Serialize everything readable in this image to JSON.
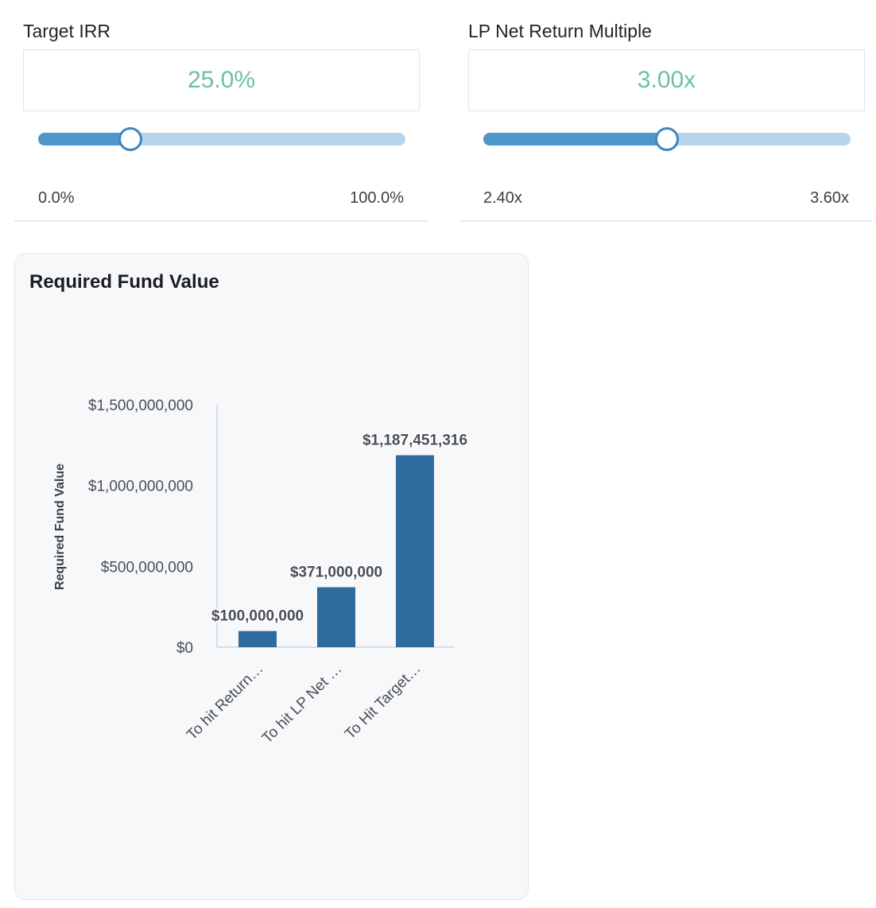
{
  "controls": {
    "target_irr": {
      "label": "Target IRR",
      "value": "25.0%",
      "slider_fraction": 0.25,
      "min_label": "0.0%",
      "max_label": "100.0%"
    },
    "lp_multiple": {
      "label": "LP Net Return Multiple",
      "value": "3.00x",
      "slider_fraction": 0.5,
      "min_label": "2.40x",
      "max_label": "3.60x"
    }
  },
  "colors": {
    "accent_value": "#6cc0a5",
    "slider_fill": "#4f96cc",
    "slider_track": "#b6d4ec",
    "bar": "#2e6b9e"
  },
  "chart_data": {
    "type": "bar",
    "title": "Required Fund Value",
    "ylabel": "Required Fund Value",
    "xlabel": "",
    "categories": [
      "To hit Return…",
      "To hit LP Net …",
      "To Hit Target…"
    ],
    "values": [
      100000000,
      371000000,
      1187451316
    ],
    "value_labels": [
      "$100,000,000",
      "$371,000,000",
      "$1,187,451,316"
    ],
    "ylim": [
      0,
      1500000000
    ],
    "yticks": [
      0,
      500000000,
      1000000000,
      1500000000
    ],
    "ytick_labels": [
      "$0",
      "$500,000,000",
      "$1,000,000,000",
      "$1,500,000,000"
    ],
    "grid": false,
    "legend": "none"
  }
}
